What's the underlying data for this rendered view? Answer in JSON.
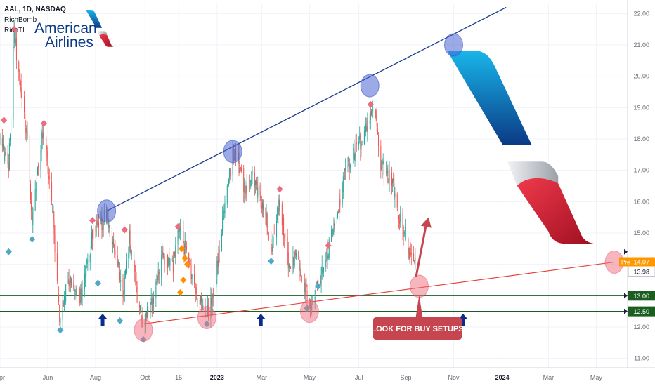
{
  "legend": {
    "symbol_line": "AAL, 1D, NASDAQ",
    "indicator_1": "RichBomb",
    "indicator_2": "RichTL"
  },
  "logo": {
    "line1": "American",
    "line2": "Airlines"
  },
  "annotation": {
    "text": "LOOK FOR BUY SETUPS"
  },
  "price_tags": {
    "pre_label": "Pre",
    "pre_value": "14.07",
    "last_value": "13.98"
  },
  "colors": {
    "up": "#26a69a",
    "down": "#ef5350",
    "resistance": "#1a3a8c",
    "support": "#e53935",
    "level": "#1b5e20",
    "marker_blue": "#4a66d4",
    "marker_pink": "#f06b7d",
    "arrow_blue": "#0d2a8c",
    "diamond_red": "#f06b7d",
    "diamond_teal": "#4fa9c6",
    "diamond_orange": "#ff8f00",
    "callout": "#c6464f",
    "pre_tag": "#ff9800",
    "brand_blue": "#0a8fd8",
    "brand_red": "#d8182e"
  },
  "chart_data": {
    "type": "candlestick",
    "title": "AAL, 1D, NASDAQ",
    "x_range": [
      "2022-04-01",
      "2024-06-10"
    ],
    "ylim": [
      10.7,
      22.3
    ],
    "y_ticks": [
      11,
      12,
      13,
      14,
      15,
      16,
      17,
      18,
      19,
      20,
      21,
      22
    ],
    "y_tick_labels": [
      "11.00",
      "12.00",
      "13.00",
      "14.00",
      "15.00",
      "16.00",
      "17.00",
      "18.00",
      "19.00",
      "20.00",
      "21.00",
      "22.00"
    ],
    "x_ticks": [
      {
        "date": "2022-04-01",
        "label": "Apr"
      },
      {
        "date": "2022-06-01",
        "label": "Jun"
      },
      {
        "date": "2022-08-01",
        "label": "Aug"
      },
      {
        "date": "2022-10-03",
        "label": "Oct"
      },
      {
        "date": "2022-11-15",
        "label": "15"
      },
      {
        "date": "2023-01-03",
        "label": "2023"
      },
      {
        "date": "2023-03-01",
        "label": "Mar"
      },
      {
        "date": "2023-05-01",
        "label": "May"
      },
      {
        "date": "2023-07-03",
        "label": "Jul"
      },
      {
        "date": "2023-09-01",
        "label": "Sep"
      },
      {
        "date": "2023-11-01",
        "label": "Nov"
      },
      {
        "date": "2024-01-02",
        "label": "2024"
      },
      {
        "date": "2024-03-01",
        "label": "Mar"
      },
      {
        "date": "2024-05-01",
        "label": "May"
      }
    ],
    "price_path": [
      [
        "2022-04-01",
        18.0
      ],
      [
        "2022-04-12",
        17.0
      ],
      [
        "2022-04-19",
        21.4
      ],
      [
        "2022-04-26",
        19.8
      ],
      [
        "2022-05-06",
        18.0
      ],
      [
        "2022-05-12",
        15.4
      ],
      [
        "2022-05-26",
        18.3
      ],
      [
        "2022-06-06",
        16.2
      ],
      [
        "2022-06-16",
        12.2
      ],
      [
        "2022-06-27",
        13.5
      ],
      [
        "2022-07-06",
        13.3
      ],
      [
        "2022-07-14",
        12.9
      ],
      [
        "2022-07-28",
        15.0
      ],
      [
        "2022-08-06",
        15.1
      ],
      [
        "2022-08-15",
        15.7
      ],
      [
        "2022-08-26",
        14.2
      ],
      [
        "2022-09-06",
        13.1
      ],
      [
        "2022-09-13",
        14.9
      ],
      [
        "2022-09-23",
        13.0
      ],
      [
        "2022-09-30",
        12.1
      ],
      [
        "2022-10-12",
        12.7
      ],
      [
        "2022-10-24",
        14.3
      ],
      [
        "2022-11-08",
        14.0
      ],
      [
        "2022-11-15",
        15.1
      ],
      [
        "2022-11-28",
        14.1
      ],
      [
        "2022-12-08",
        13.1
      ],
      [
        "2022-12-20",
        12.3
      ],
      [
        "2022-12-28",
        12.8
      ],
      [
        "2023-01-06",
        14.5
      ],
      [
        "2023-01-16",
        16.5
      ],
      [
        "2023-01-23",
        17.5
      ],
      [
        "2023-01-30",
        17.3
      ],
      [
        "2023-02-08",
        16.3
      ],
      [
        "2023-02-17",
        16.8
      ],
      [
        "2023-02-24",
        16.2
      ],
      [
        "2023-03-06",
        15.8
      ],
      [
        "2023-03-13",
        14.4
      ],
      [
        "2023-03-24",
        16.1
      ],
      [
        "2023-04-04",
        14.0
      ],
      [
        "2023-04-14",
        14.3
      ],
      [
        "2023-04-25",
        13.1
      ],
      [
        "2023-05-03",
        12.8
      ],
      [
        "2023-05-12",
        13.3
      ],
      [
        "2023-05-23",
        14.3
      ],
      [
        "2023-06-02",
        15.2
      ],
      [
        "2023-06-16",
        17.0
      ],
      [
        "2023-06-28",
        17.6
      ],
      [
        "2023-07-07",
        18.0
      ],
      [
        "2023-07-17",
        18.6
      ],
      [
        "2023-07-24",
        18.9
      ],
      [
        "2023-07-31",
        17.2
      ],
      [
        "2023-08-14",
        16.6
      ],
      [
        "2023-08-24",
        15.4
      ],
      [
        "2023-09-01",
        14.9
      ],
      [
        "2023-09-08",
        14.1
      ],
      [
        "2023-09-13",
        13.98
      ]
    ],
    "levels": [
      13.0,
      12.5
    ],
    "resistance_line": [
      [
        "2022-08-15",
        15.7
      ],
      [
        "2024-01-07",
        22.2
      ]
    ],
    "support_line": [
      [
        "2022-10-01",
        12.1
      ],
      [
        "2024-05-24",
        14.07
      ]
    ],
    "current": {
      "pre": 14.07,
      "last": 13.98
    },
    "marker_circles": [
      {
        "date": "2022-08-15",
        "value": 15.7,
        "color": "blue"
      },
      {
        "date": "2023-01-23",
        "value": 17.6,
        "color": "blue"
      },
      {
        "date": "2023-07-17",
        "value": 19.7,
        "color": "blue"
      },
      {
        "date": "2023-11-01",
        "value": 21.0,
        "color": "blue"
      },
      {
        "date": "2022-10-01",
        "value": 11.9,
        "color": "pink"
      },
      {
        "date": "2022-12-21",
        "value": 12.3,
        "color": "pink"
      },
      {
        "date": "2023-05-01",
        "value": 12.5,
        "color": "pink"
      },
      {
        "date": "2023-09-18",
        "value": 13.3,
        "color": "pink"
      },
      {
        "date": "2024-05-24",
        "value": 14.07,
        "color": "pink"
      }
    ],
    "up_arrows": [
      {
        "date": "2022-08-10",
        "value": 12.2
      },
      {
        "date": "2023-02-28",
        "value": 12.2
      },
      {
        "date": "2023-11-13",
        "value": 12.2
      }
    ],
    "signals_sell": [
      [
        "2022-04-06",
        18.6
      ],
      [
        "2022-04-19",
        21.5
      ],
      [
        "2022-05-27",
        18.5
      ],
      [
        "2022-07-28",
        15.4
      ],
      [
        "2022-09-07",
        15.1
      ],
      [
        "2022-11-14",
        15.2
      ],
      [
        "2023-03-24",
        16.4
      ],
      [
        "2023-05-25",
        14.6
      ],
      [
        "2023-07-18",
        19.1
      ]
    ],
    "signals_buy": [
      [
        "2022-04-12",
        14.4
      ],
      [
        "2022-05-12",
        14.8
      ],
      [
        "2022-06-17",
        11.9
      ],
      [
        "2022-08-04",
        13.4
      ],
      [
        "2022-09-01",
        12.2
      ],
      [
        "2022-10-01",
        11.6
      ],
      [
        "2022-12-21",
        12.1
      ],
      [
        "2023-03-13",
        14.1
      ],
      [
        "2023-04-28",
        12.6
      ],
      [
        "2023-05-12",
        13.3
      ]
    ],
    "signals_orange": [
      [
        "2022-11-19",
        14.5
      ],
      [
        "2022-11-23",
        14.2
      ],
      [
        "2022-11-26",
        14.0
      ],
      [
        "2022-11-21",
        13.5
      ],
      [
        "2022-11-17",
        13.1
      ]
    ],
    "callout_arrow": {
      "from": [
        "2023-09-14",
        13.6
      ],
      "to": [
        "2023-09-30",
        15.5
      ]
    },
    "callout_pointer": {
      "date": "2023-09-18",
      "value": 13.2
    }
  }
}
